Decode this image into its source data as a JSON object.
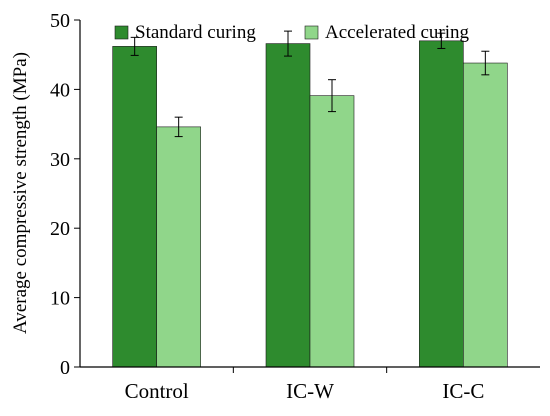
{
  "chart_data": {
    "type": "bar",
    "categories": [
      "Control",
      "IC-W",
      "IC-C"
    ],
    "series": [
      {
        "name": "Standard curing",
        "values": [
          46.2,
          46.6,
          47.0
        ],
        "errors": [
          1.3,
          1.8,
          1.1
        ],
        "color": "#2e8b2e"
      },
      {
        "name": "Accelerated curing",
        "values": [
          34.6,
          39.1,
          43.8
        ],
        "errors": [
          1.4,
          2.3,
          1.7
        ],
        "color": "#90d68a"
      }
    ],
    "title": "",
    "xlabel": "",
    "ylabel": "Average compressive strength (MPa)",
    "ylim": [
      0,
      50
    ],
    "yticks": [
      "0",
      "10",
      "20",
      "30",
      "40",
      "50"
    ],
    "grid": false,
    "legend": "top"
  }
}
